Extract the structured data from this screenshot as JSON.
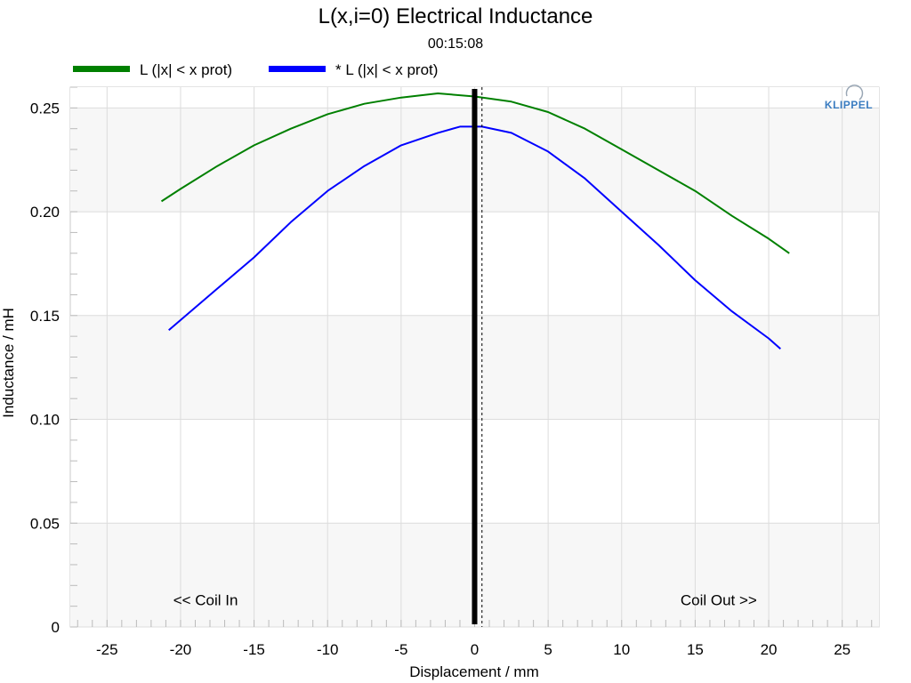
{
  "chart_data": {
    "type": "line",
    "title": "L(x,i=0) Electrical Inductance",
    "subtitle": "00:15:08",
    "xlabel": "Displacement / mm",
    "ylabel": "Inductance / mH",
    "xlim": [
      -27.5,
      27.5
    ],
    "ylim": [
      0,
      0.26
    ],
    "xticks": [
      -25,
      -20,
      -15,
      -10,
      -5,
      0,
      5,
      10,
      15,
      20,
      25
    ],
    "xtick_labels": [
      "-25",
      "-20",
      "-15",
      "-10",
      "-5",
      "0",
      "5",
      "10",
      "15",
      "20",
      "25"
    ],
    "yticks": [
      0,
      0.05,
      0.1,
      0.15,
      0.2,
      0.25
    ],
    "ytick_labels": [
      "0",
      "0.05",
      "0.10",
      "0.15",
      "0.20",
      "0.25"
    ],
    "grid": true,
    "legend_position": "top-left",
    "series": [
      {
        "name": "L (|x| < x prot)",
        "color": "#008000",
        "x": [
          -21.3,
          -20,
          -17.5,
          -15,
          -12.5,
          -10,
          -7.5,
          -5,
          -2.5,
          0,
          2.5,
          5,
          7.5,
          10,
          12.5,
          15,
          17.5,
          20,
          21.4
        ],
        "y": [
          0.205,
          0.211,
          0.222,
          0.232,
          0.24,
          0.247,
          0.252,
          0.255,
          0.257,
          0.2555,
          0.253,
          0.248,
          0.24,
          0.23,
          0.22,
          0.21,
          0.198,
          0.187,
          0.18
        ]
      },
      {
        "name": "* L (|x| < x prot)",
        "color": "#0000ff",
        "x": [
          -20.8,
          -17.5,
          -15,
          -12.5,
          -10,
          -7.5,
          -5,
          -2.5,
          -1,
          0.5,
          2.5,
          5,
          7.5,
          10,
          12.5,
          15,
          17.5,
          20,
          20.8
        ],
        "y": [
          0.143,
          0.163,
          0.178,
          0.195,
          0.21,
          0.222,
          0.232,
          0.238,
          0.241,
          0.241,
          0.238,
          0.229,
          0.216,
          0.2,
          0.184,
          0.167,
          0.152,
          0.139,
          0.134
        ]
      }
    ],
    "markers": [
      {
        "x": 0,
        "style": "solid-thick",
        "color": "#000000"
      },
      {
        "x": 0.5,
        "style": "dashed",
        "color": "#000000"
      }
    ],
    "annotations": [
      {
        "text": "<< Coil In",
        "x": -20.5,
        "y": 0.013
      },
      {
        "text": "Coil Out >>",
        "x": 14,
        "y": 0.013
      }
    ],
    "logo": "KLIPPEL"
  }
}
